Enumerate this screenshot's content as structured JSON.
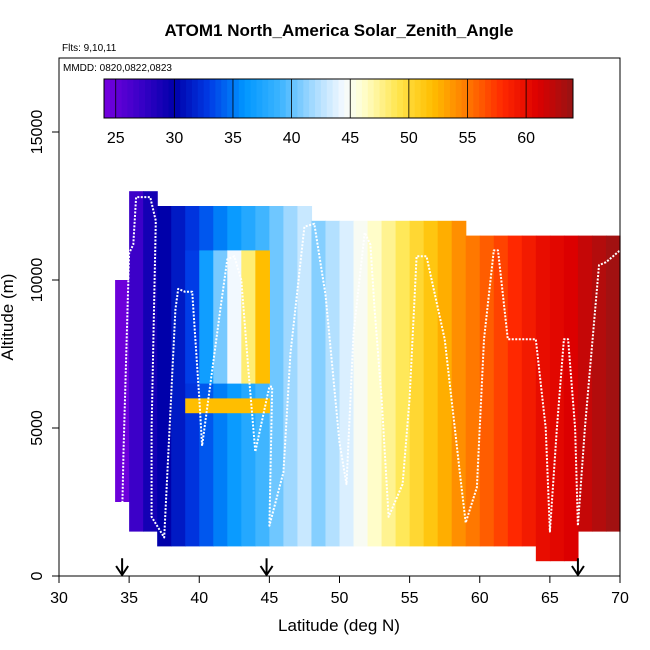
{
  "chart_data": {
    "type": "heatmap",
    "title": "ATOM1 North_America Solar_Zenith_Angle",
    "flights_label": "Flts: 9,10,11",
    "dates_label": "MMDD: 0820,0822,0823",
    "xlabel": "Latitude (deg N)",
    "ylabel": "Altitude (m)",
    "xlim": [
      30,
      70
    ],
    "ylim": [
      0,
      17500
    ],
    "x_ticks": [
      "30",
      "35",
      "40",
      "45",
      "50",
      "55",
      "60",
      "65",
      "70"
    ],
    "y_ticks": [
      "0",
      "5000",
      "10000",
      "15000"
    ],
    "colorbar": {
      "range": [
        24,
        64
      ],
      "tick_values": [
        25,
        30,
        35,
        40,
        45,
        50,
        55,
        60
      ],
      "tick_labels": [
        "25",
        "30",
        "35",
        "40",
        "45",
        "50",
        "55",
        "60"
      ]
    },
    "grid_bins": {
      "lat_step": 1,
      "alt_step": 500
    },
    "regions": [
      {
        "lat": [
          34,
          35
        ],
        "alt": [
          2500,
          10000
        ],
        "value_lat0": 24.5,
        "value_lat1": 25.5
      },
      {
        "lat": [
          35,
          37
        ],
        "alt": [
          1500,
          13000
        ],
        "value_lat0": 27,
        "value_lat1": 29
      },
      {
        "lat": [
          37,
          48
        ],
        "alt": [
          1000,
          12500
        ],
        "value_lat0": 30,
        "value_lat1": 43
      },
      {
        "lat": [
          48,
          59
        ],
        "alt": [
          1000,
          12000
        ],
        "value_lat0": 41,
        "value_lat1": 54
      },
      {
        "lat": [
          59,
          64
        ],
        "alt": [
          1000,
          11500
        ],
        "value_lat0": 55,
        "value_lat1": 59
      },
      {
        "lat": [
          64,
          67
        ],
        "alt": [
          500,
          11500
        ],
        "value_lat0": 60,
        "value_lat1": 61
      },
      {
        "lat": [
          67,
          70
        ],
        "alt": [
          1500,
          11500
        ],
        "value_lat0": 62,
        "value_lat1": 63.5
      }
    ],
    "inner_panel": {
      "lat": [
        39,
        45
      ],
      "alt": [
        6500,
        11000
      ],
      "value_lat0": 33,
      "value_lat1": 52
    },
    "inner_strip": {
      "lat": [
        39,
        45
      ],
      "alt": [
        5500,
        6000
      ],
      "value": 52
    },
    "flight_track": {
      "description": "white flight path of aircraft profiles",
      "points": [
        [
          34.5,
          2000
        ],
        [
          34.6,
          4200
        ],
        [
          35.0,
          10900
        ],
        [
          35.3,
          11200
        ],
        [
          35.5,
          12800
        ],
        [
          36.5,
          12800
        ],
        [
          36.9,
          12000
        ],
        [
          36.6,
          5000
        ],
        [
          36.6,
          2000
        ],
        [
          37.5,
          1300
        ],
        [
          38.3,
          9000
        ],
        [
          38.5,
          9700
        ],
        [
          39.0,
          9600
        ],
        [
          39.5,
          9600
        ],
        [
          40.0,
          6000
        ],
        [
          40.2,
          4400
        ],
        [
          41.5,
          9000
        ],
        [
          42.0,
          10700
        ],
        [
          42.5,
          10800
        ],
        [
          43.0,
          10000
        ],
        [
          43.5,
          7000
        ],
        [
          44.0,
          4200
        ],
        [
          45.0,
          6400
        ],
        [
          45.2,
          6400
        ],
        [
          45.0,
          1700
        ],
        [
          46.0,
          3500
        ],
        [
          46.5,
          7500
        ],
        [
          47.5,
          11800
        ],
        [
          48.2,
          11900
        ],
        [
          49.0,
          9500
        ],
        [
          49.5,
          7000
        ],
        [
          50.0,
          4500
        ],
        [
          50.5,
          3100
        ],
        [
          51.0,
          8200
        ],
        [
          51.8,
          11600
        ],
        [
          52.2,
          11200
        ],
        [
          52.5,
          9000
        ],
        [
          53.0,
          6000
        ],
        [
          53.5,
          2000
        ],
        [
          54.5,
          3100
        ],
        [
          55.0,
          6000
        ],
        [
          55.5,
          10800
        ],
        [
          56.2,
          10800
        ],
        [
          57.5,
          8000
        ],
        [
          58.7,
          3000
        ],
        [
          59.0,
          1800
        ],
        [
          59.8,
          3000
        ],
        [
          60.3,
          8000
        ],
        [
          61.0,
          11000
        ],
        [
          61.3,
          11000
        ],
        [
          62.0,
          8000
        ],
        [
          64.0,
          8000
        ],
        [
          64.7,
          5000
        ],
        [
          65.0,
          1500
        ],
        [
          65.5,
          5000
        ],
        [
          66.0,
          8000
        ],
        [
          66.3,
          8000
        ],
        [
          66.8,
          5000
        ],
        [
          67.0,
          1700
        ],
        [
          67.5,
          5000
        ],
        [
          68.5,
          10500
        ],
        [
          69.0,
          10600
        ],
        [
          70.0,
          11000
        ]
      ]
    },
    "markers": {
      "description": "downward arrows marking flight turnaround latitudes",
      "latitudes": [
        34.5,
        44.8,
        67
      ]
    }
  }
}
